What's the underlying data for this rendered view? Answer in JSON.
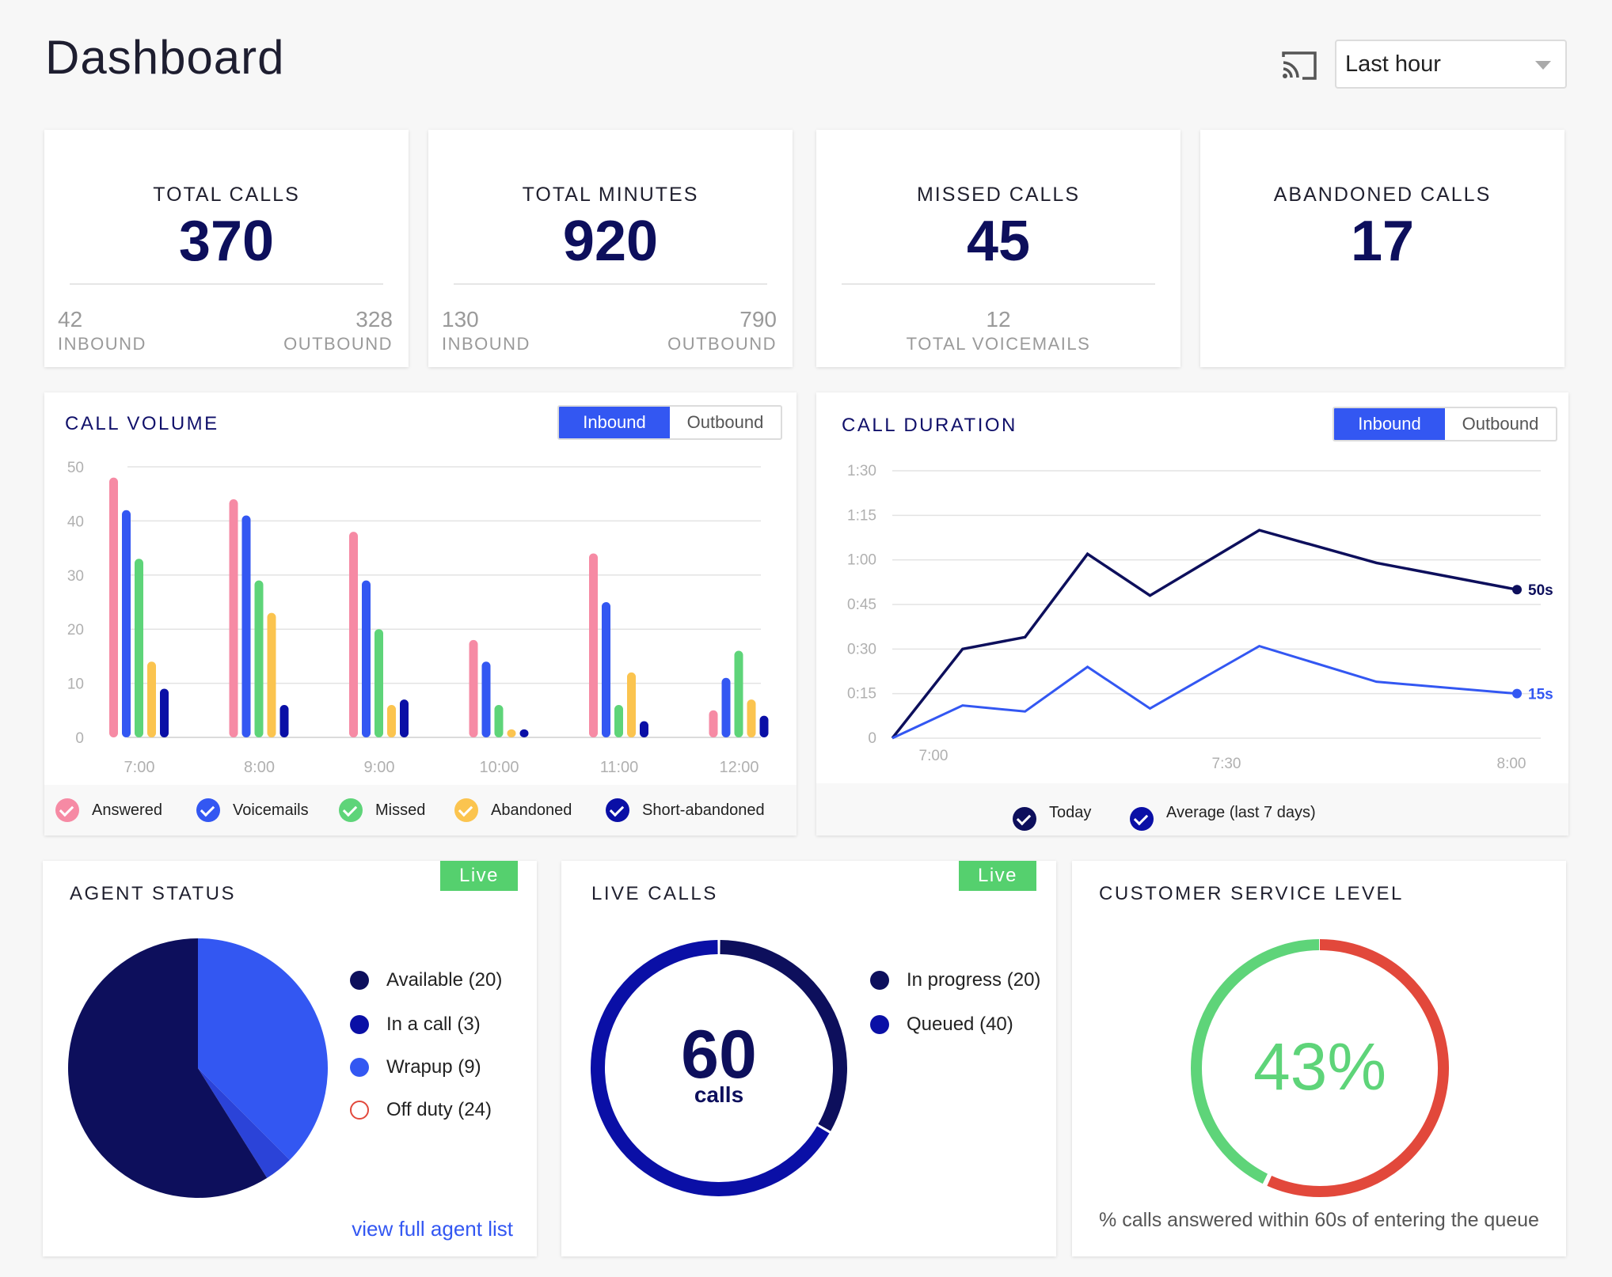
{
  "header": {
    "title": "Dashboard",
    "range": "Last hour",
    "cast_icon": "cast-icon"
  },
  "stats": [
    {
      "title": "TOTAL CALLS",
      "value": "370",
      "left_value": "42",
      "left_label": "INBOUND",
      "right_value": "328",
      "right_label": "OUTBOUND"
    },
    {
      "title": "TOTAL MINUTES",
      "value": "920",
      "left_value": "130",
      "left_label": "INBOUND",
      "right_value": "790",
      "right_label": "OUTBOUND"
    },
    {
      "title": "MISSED CALLS",
      "value": "45",
      "center_value": "12",
      "center_label": "TOTAL VOICEMAILS"
    },
    {
      "title": "ABANDONED CALLS",
      "value": "17"
    }
  ],
  "call_volume": {
    "title": "CALL VOLUME",
    "toggle": [
      "Inbound",
      "Outbound"
    ],
    "legend": [
      "Answered",
      "Voicemails",
      "Missed",
      "Abandoned",
      "Short-abandoned"
    ]
  },
  "call_duration": {
    "title": "CALL DURATION",
    "toggle": [
      "Inbound",
      "Outbound"
    ],
    "legend": [
      "Today",
      "Average (last 7 days)"
    ]
  },
  "agent_status": {
    "title": "AGENT STATUS",
    "live": "Live",
    "items": [
      "Available (20)",
      "In a call (3)",
      "Wrapup (9)",
      "Off duty (24)"
    ],
    "link": "view full agent list"
  },
  "live_calls": {
    "title": "LIVE CALLS",
    "live": "Live",
    "count": "60",
    "unit": "calls",
    "items": [
      "In progress (20)",
      "Queued (40)"
    ]
  },
  "service_level": {
    "title": "CUSTOMER SERVICE LEVEL",
    "value": "43%",
    "fraction": 0.43,
    "caption": "% calls answered within 60s of entering the queue"
  },
  "colors": {
    "navy": "#0d0f5c",
    "blue": "#3357f2",
    "dark_blue": "#0a0fa6",
    "pink": "#f68aa4",
    "green": "#5ed479",
    "yellow": "#fbc44f",
    "red": "#e2483b"
  },
  "chart_data": [
    {
      "type": "bar",
      "categories": [
        "7:00",
        "8:00",
        "9:00",
        "10:00",
        "11:00",
        "12:00"
      ],
      "ylim": [
        0,
        50
      ],
      "yticks": [
        "0",
        "10",
        "20",
        "30",
        "40",
        "50"
      ],
      "series": [
        {
          "name": "Answered",
          "values": [
            48,
            44,
            38,
            18,
            34,
            5
          ]
        },
        {
          "name": "Voicemails",
          "values": [
            42,
            41,
            29,
            14,
            25,
            11
          ]
        },
        {
          "name": "Missed",
          "values": [
            33,
            29,
            20,
            6,
            6,
            16
          ]
        },
        {
          "name": "Abandoned",
          "values": [
            14,
            23,
            6,
            1.5,
            12,
            7
          ]
        },
        {
          "name": "Short-abandoned",
          "values": [
            9,
            6,
            7,
            1.5,
            3,
            4
          ]
        }
      ]
    },
    {
      "type": "line",
      "x_ticks": [
        "7:00",
        "7:30",
        "8:00"
      ],
      "y_ticks": [
        "0",
        "0:15",
        "0:30",
        "0:45",
        "1:00",
        "1:15",
        "1:30"
      ],
      "ylim_seconds": [
        0,
        90
      ],
      "series": [
        {
          "name": "Today",
          "x_minutes": [
            0,
            9,
            17,
            25,
            33,
            47,
            62,
            80
          ],
          "y_seconds": [
            0,
            30,
            34,
            62,
            48,
            70,
            59,
            50
          ],
          "end_label": "50s"
        },
        {
          "name": "Average (last 7 days)",
          "x_minutes": [
            0,
            9,
            17,
            25,
            33,
            47,
            62,
            80
          ],
          "y_seconds": [
            0,
            11,
            9,
            24,
            10,
            31,
            19,
            15
          ],
          "end_label": "15s"
        }
      ]
    },
    {
      "type": "pie",
      "labels": [
        "Available",
        "In a call",
        "Wrapup",
        "Off duty"
      ],
      "values": [
        20,
        3,
        9,
        24
      ]
    },
    {
      "type": "pie",
      "labels": [
        "In progress",
        "Queued"
      ],
      "values": [
        20,
        40
      ]
    }
  ]
}
